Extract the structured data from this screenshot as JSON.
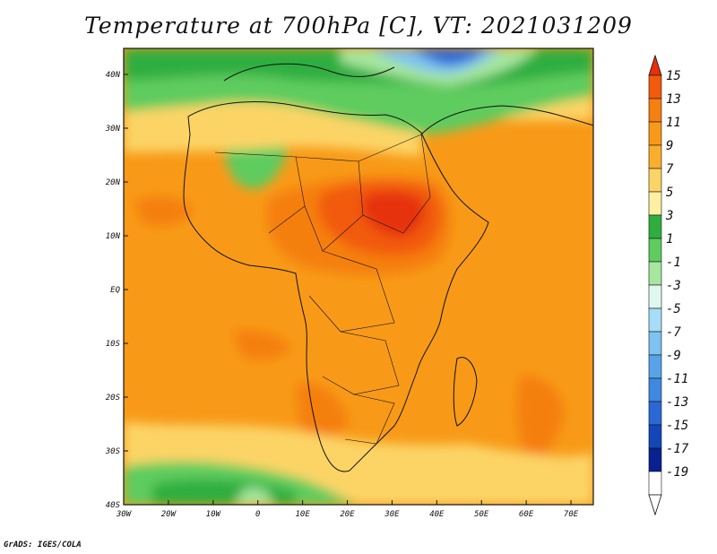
{
  "title": "Temperature at 700hPa [C], VT: 2021031209",
  "footer": "GrADS: IGES/COLA",
  "map": {
    "projection": "lat-lon",
    "lon_range": [
      -30,
      75
    ],
    "lat_range": [
      -40,
      45
    ],
    "x_ticks": [
      "30W",
      "20W",
      "10W",
      "0",
      "10E",
      "20E",
      "30E",
      "40E",
      "50E",
      "60E",
      "70E"
    ],
    "y_ticks": [
      "40N",
      "30N",
      "20N",
      "10N",
      "EQ",
      "10S",
      "20S",
      "30S",
      "40S"
    ],
    "features": [
      "coastlines",
      "country-borders"
    ]
  },
  "colorbar": {
    "labels": [
      "15",
      "13",
      "11",
      "9",
      "7",
      "5",
      "3",
      "1",
      "-1",
      "-3",
      "-5",
      "-7",
      "-9",
      "-11",
      "-13",
      "-15",
      "-17",
      "-19"
    ],
    "colors": [
      "#e6300a",
      "#f25a0c",
      "#f57f10",
      "#f89a18",
      "#faae2e",
      "#fcd466",
      "#fdf0a0",
      "#2fae3f",
      "#5fcc5f",
      "#a6e69e",
      "#dff7ef",
      "#a7ddf6",
      "#7dc2f0",
      "#58a4e9",
      "#3f88e0",
      "#2a68d6",
      "#1346b8",
      "#0a2090",
      "#ffffff"
    ]
  }
}
